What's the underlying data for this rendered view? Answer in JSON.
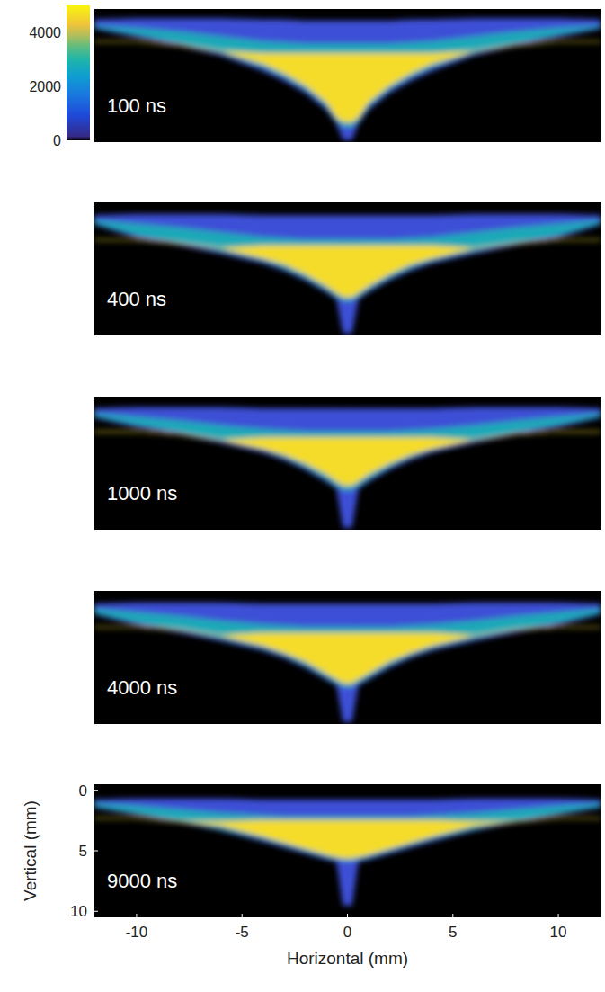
{
  "chart_data": [
    {
      "type": "area",
      "annotation": "100 ns",
      "x": [
        -12,
        -10,
        -8,
        -6,
        -4,
        -3,
        -2,
        -1,
        -0.5,
        -0.2,
        0.2,
        0.5,
        1,
        2,
        3,
        4,
        6,
        8,
        10,
        12
      ],
      "xlim": [
        -12,
        12
      ],
      "ylim": [
        10.5,
        -0.5
      ],
      "tick_labels": false,
      "colorbar": {
        "range": [
          0,
          5000
        ],
        "ticks": [
          0,
          2000,
          4000
        ]
      },
      "series": [
        {
          "color": "#3d4fd6",
          "upper": [
            0.4,
            0.3,
            0.3,
            0.3,
            0.4,
            0.4,
            0.5,
            0.5,
            0.5,
            0.5,
            0.5,
            0.5,
            0.5,
            0.5,
            0.4,
            0.4,
            0.3,
            0.3,
            0.3,
            0.4
          ],
          "lower": [
            1.1,
            1.8,
            2.5,
            3.3,
            4.6,
            5.4,
            6.4,
            7.8,
            9.0,
            10.3,
            10.3,
            9.0,
            7.8,
            6.4,
            5.4,
            4.6,
            3.3,
            2.5,
            1.8,
            1.1
          ]
        },
        {
          "color": "#1fa9b8",
          "upper": [
            0.9,
            1.1,
            1.4,
            1.8,
            2.2,
            2.3,
            2.4,
            2.4,
            2.4,
            2.4,
            2.4,
            2.4,
            2.4,
            2.4,
            2.3,
            2.2,
            1.8,
            1.4,
            1.1,
            0.9
          ],
          "lower": [
            1.0,
            1.6,
            2.3,
            3.1,
            4.3,
            5.1,
            6.1,
            7.5,
            8.8,
            9.2,
            9.2,
            8.8,
            7.5,
            6.1,
            5.1,
            4.3,
            3.1,
            2.3,
            1.6,
            1.0
          ]
        },
        {
          "color": "#f5dc2a",
          "upper": [
            2.2,
            2.2,
            2.5,
            3.0,
            3.2,
            3.2,
            3.2,
            3.2,
            3.2,
            3.2,
            3.2,
            3.2,
            3.2,
            3.2,
            3.2,
            3.2,
            3.0,
            2.5,
            2.2,
            2.2
          ],
          "lower": [
            2.2,
            2.2,
            2.5,
            3.0,
            4.0,
            4.8,
            5.8,
            7.2,
            8.5,
            8.8,
            8.8,
            8.5,
            7.2,
            5.8,
            4.8,
            4.0,
            3.0,
            2.5,
            2.2,
            2.2
          ]
        }
      ]
    },
    {
      "type": "area",
      "annotation": "400 ns",
      "x": [
        -12,
        -10,
        -8,
        -6,
        -4,
        -3,
        -2,
        -1,
        -0.5,
        -0.2,
        0.2,
        0.5,
        1,
        2,
        3,
        4,
        6,
        8,
        10,
        12
      ],
      "xlim": [
        -12,
        12
      ],
      "ylim": [
        10.5,
        -0.5
      ],
      "tick_labels": false,
      "series": [
        {
          "color": "#3d4fd6",
          "upper": [
            0.6,
            0.5,
            0.5,
            0.5,
            0.6,
            0.6,
            0.6,
            0.6,
            0.6,
            0.6,
            0.6,
            0.6,
            0.6,
            0.6,
            0.6,
            0.6,
            0.5,
            0.5,
            0.5,
            0.6
          ],
          "lower": [
            1.3,
            2.4,
            3.0,
            3.7,
            4.5,
            5.1,
            5.9,
            6.9,
            7.5,
            10.3,
            10.3,
            7.5,
            6.9,
            5.9,
            5.1,
            4.5,
            3.7,
            3.0,
            2.4,
            1.3
          ]
        },
        {
          "color": "#1fa9b8",
          "upper": [
            1.0,
            1.3,
            1.6,
            2.0,
            2.4,
            2.5,
            2.6,
            2.6,
            2.6,
            2.6,
            2.6,
            2.6,
            2.6,
            2.6,
            2.5,
            2.4,
            2.0,
            1.6,
            1.3,
            1.0
          ],
          "lower": [
            1.2,
            2.2,
            2.8,
            3.5,
            4.3,
            4.9,
            5.7,
            6.7,
            7.3,
            7.6,
            7.6,
            7.3,
            6.7,
            5.7,
            4.9,
            4.3,
            3.5,
            2.8,
            2.2,
            1.2
          ]
        },
        {
          "color": "#f5dc2a",
          "upper": [
            2.6,
            2.6,
            2.9,
            3.3,
            3.1,
            3.1,
            3.1,
            3.1,
            3.1,
            3.1,
            3.1,
            3.1,
            3.1,
            3.1,
            3.1,
            3.1,
            3.3,
            2.9,
            2.6,
            2.6
          ],
          "lower": [
            2.6,
            2.6,
            2.9,
            3.3,
            4.1,
            4.6,
            5.4,
            6.4,
            7.0,
            7.3,
            7.3,
            7.0,
            6.4,
            5.4,
            4.6,
            4.1,
            3.3,
            2.9,
            2.6,
            2.6
          ]
        }
      ]
    },
    {
      "type": "area",
      "annotation": "1000 ns",
      "x": [
        -12,
        -10,
        -8,
        -6,
        -4,
        -3,
        -2,
        -1,
        -0.5,
        -0.2,
        0.2,
        0.5,
        1,
        2,
        3,
        4,
        6,
        8,
        10,
        12
      ],
      "xlim": [
        -12,
        12
      ],
      "ylim": [
        10.5,
        -0.5
      ],
      "tick_labels": false,
      "series": [
        {
          "color": "#3d4fd6",
          "upper": [
            0.5,
            0.4,
            0.4,
            0.4,
            0.5,
            0.5,
            0.5,
            0.5,
            0.5,
            0.5,
            0.5,
            0.5,
            0.5,
            0.5,
            0.5,
            0.5,
            0.4,
            0.4,
            0.4,
            0.5
          ],
          "lower": [
            1.2,
            2.0,
            2.6,
            3.3,
            4.1,
            4.7,
            5.5,
            6.5,
            7.1,
            10.3,
            10.3,
            7.1,
            6.5,
            5.5,
            4.7,
            4.1,
            3.3,
            2.6,
            2.0,
            1.2
          ]
        },
        {
          "color": "#1fa9b8",
          "upper": [
            0.9,
            1.2,
            1.5,
            1.9,
            2.2,
            2.3,
            2.4,
            2.4,
            2.4,
            2.4,
            2.4,
            2.4,
            2.4,
            2.4,
            2.3,
            2.2,
            1.9,
            1.5,
            1.2,
            0.9
          ],
          "lower": [
            1.1,
            1.8,
            2.4,
            3.1,
            3.9,
            4.5,
            5.3,
            6.3,
            6.9,
            7.2,
            7.2,
            6.9,
            6.3,
            5.3,
            4.5,
            3.9,
            3.1,
            2.4,
            1.8,
            1.1
          ]
        },
        {
          "color": "#f5dc2a",
          "upper": [
            2.4,
            2.4,
            2.6,
            3.1,
            2.9,
            2.9,
            2.9,
            2.9,
            2.9,
            2.9,
            2.9,
            2.9,
            2.9,
            2.9,
            2.9,
            2.9,
            3.1,
            2.6,
            2.4,
            2.4
          ],
          "lower": [
            2.4,
            2.4,
            2.6,
            3.1,
            3.8,
            4.3,
            5.0,
            5.9,
            6.5,
            6.8,
            6.8,
            6.5,
            5.9,
            5.0,
            4.3,
            3.8,
            3.1,
            2.6,
            2.4,
            2.4
          ]
        }
      ]
    },
    {
      "type": "area",
      "annotation": "4000 ns",
      "x": [
        -12,
        -10,
        -8,
        -6,
        -4,
        -3,
        -2,
        -1,
        -0.5,
        -0.2,
        0.2,
        0.5,
        1,
        2,
        3,
        4,
        6,
        8,
        10,
        12
      ],
      "xlim": [
        -12,
        12
      ],
      "ylim": [
        10.5,
        -0.5
      ],
      "tick_labels": false,
      "series": [
        {
          "color": "#3d4fd6",
          "upper": [
            0.6,
            0.5,
            0.5,
            0.5,
            0.6,
            0.6,
            0.6,
            0.6,
            0.6,
            0.6,
            0.6,
            0.6,
            0.6,
            0.6,
            0.6,
            0.6,
            0.5,
            0.5,
            0.5,
            0.6
          ],
          "lower": [
            1.4,
            2.3,
            2.9,
            3.6,
            4.4,
            5.0,
            5.8,
            6.8,
            7.3,
            10.3,
            10.3,
            7.3,
            6.8,
            5.8,
            5.0,
            4.4,
            3.6,
            2.9,
            2.3,
            1.4
          ]
        },
        {
          "color": "#1fa9b8",
          "upper": [
            1.0,
            1.3,
            1.6,
            2.0,
            2.3,
            2.4,
            2.5,
            2.5,
            2.5,
            2.5,
            2.5,
            2.5,
            2.5,
            2.5,
            2.4,
            2.3,
            2.0,
            1.6,
            1.3,
            1.0
          ],
          "lower": [
            1.3,
            2.1,
            2.7,
            3.4,
            4.2,
            4.8,
            5.6,
            6.6,
            7.1,
            7.4,
            7.4,
            7.1,
            6.6,
            5.6,
            4.8,
            4.2,
            3.4,
            2.7,
            2.1,
            1.3
          ]
        },
        {
          "color": "#f5dc2a",
          "upper": [
            2.5,
            2.5,
            2.7,
            3.2,
            3.0,
            3.0,
            3.0,
            3.0,
            3.0,
            3.0,
            3.0,
            3.0,
            3.0,
            3.0,
            3.0,
            3.0,
            3.2,
            2.7,
            2.5,
            2.5
          ],
          "lower": [
            2.5,
            2.5,
            2.7,
            3.2,
            4.0,
            4.6,
            5.3,
            6.3,
            6.8,
            7.1,
            7.1,
            6.8,
            6.3,
            5.3,
            4.6,
            4.0,
            3.2,
            2.7,
            2.5,
            2.5
          ]
        }
      ]
    },
    {
      "type": "area",
      "annotation": "9000 ns",
      "x": [
        -12,
        -10,
        -8,
        -6,
        -4,
        -3,
        -2,
        -1,
        -0.5,
        -0.2,
        0.2,
        0.5,
        1,
        2,
        3,
        4,
        6,
        8,
        10,
        12
      ],
      "xlim": [
        -12,
        12
      ],
      "ylim": [
        10.5,
        -0.5
      ],
      "xticks": [
        -10,
        -5,
        0,
        5,
        10
      ],
      "yticks": [
        0,
        5,
        10
      ],
      "xlabel": "Horizontal (mm)",
      "ylabel": "Vertical (mm)",
      "series": [
        {
          "color": "#3d4fd6",
          "upper": [
            0.8,
            0.7,
            0.7,
            0.7,
            0.8,
            0.8,
            0.8,
            0.8,
            0.8,
            0.8,
            0.8,
            0.8,
            0.8,
            0.8,
            0.8,
            0.8,
            0.7,
            0.7,
            0.7,
            0.8
          ],
          "lower": [
            1.4,
            2.0,
            2.6,
            3.3,
            4.2,
            4.7,
            5.2,
            5.7,
            5.9,
            9.5,
            9.5,
            5.9,
            5.7,
            5.2,
            4.7,
            4.2,
            3.3,
            2.6,
            2.0,
            1.4
          ]
        },
        {
          "color": "#1fa9b8",
          "upper": [
            1.1,
            1.3,
            1.6,
            1.9,
            2.1,
            2.2,
            2.2,
            2.2,
            2.2,
            2.2,
            2.2,
            2.2,
            2.2,
            2.2,
            2.2,
            2.1,
            1.9,
            1.6,
            1.3,
            1.1
          ],
          "lower": [
            1.3,
            1.9,
            2.5,
            3.2,
            4.0,
            4.5,
            5.0,
            5.5,
            5.7,
            5.8,
            5.8,
            5.7,
            5.5,
            5.0,
            4.5,
            4.0,
            3.2,
            2.5,
            1.9,
            1.3
          ]
        },
        {
          "color": "#f5dc2a",
          "upper": [
            2.3,
            2.3,
            2.6,
            2.6,
            2.5,
            2.5,
            2.5,
            2.5,
            2.5,
            2.5,
            2.5,
            2.5,
            2.5,
            2.5,
            2.5,
            2.5,
            2.6,
            2.6,
            2.3,
            2.3
          ],
          "lower": [
            2.3,
            2.3,
            2.6,
            2.9,
            3.8,
            4.3,
            4.8,
            5.3,
            5.5,
            5.6,
            5.6,
            5.5,
            5.3,
            4.8,
            4.3,
            3.8,
            2.9,
            2.6,
            2.3,
            2.3
          ]
        }
      ]
    }
  ]
}
